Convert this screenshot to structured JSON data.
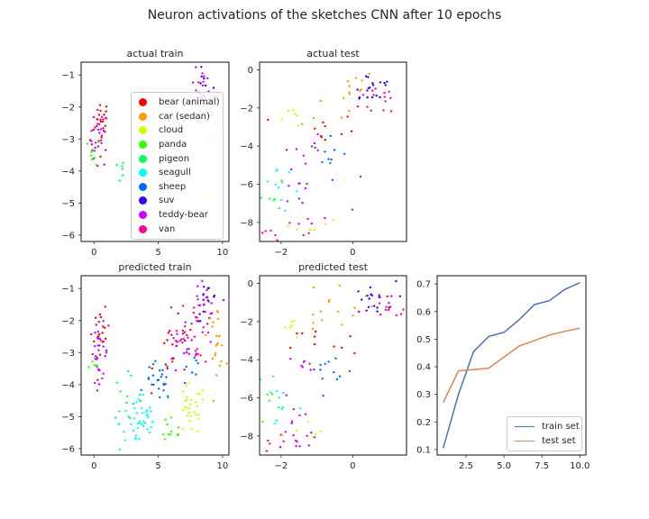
{
  "figure": {
    "suptitle": "Neuron activations of the sketches CNN after 10 epochs"
  },
  "legend_classes": [
    {
      "label": "bear (animal)",
      "color": "#ff0000"
    },
    {
      "label": "car (sedan)",
      "color": "#ff9900"
    },
    {
      "label": "cloud",
      "color": "#ccff00"
    },
    {
      "label": "panda",
      "color": "#33ff00"
    },
    {
      "label": "pigeon",
      "color": "#00ff66"
    },
    {
      "label": "seagull",
      "color": "#00ffff"
    },
    {
      "label": "sheep",
      "color": "#0066ff"
    },
    {
      "label": "suv",
      "color": "#3300ff"
    },
    {
      "label": "teddy-bear",
      "color": "#cc00ff"
    },
    {
      "label": "van",
      "color": "#ff0099"
    }
  ],
  "chart_data": [
    {
      "id": "actual-train",
      "type": "scatter",
      "title": "actual train",
      "xlim": [
        -1,
        10.5
      ],
      "ylim": [
        -6.2,
        -0.6
      ],
      "xticks": [
        0,
        5,
        10
      ],
      "yticks": [
        -1,
        -2,
        -3,
        -4,
        -5,
        -6
      ],
      "grid": false,
      "legend": "right",
      "clusters": [
        {
          "cls": 0,
          "cx": 0.6,
          "cy": -2.5,
          "sx": 0.3,
          "sy": 0.4,
          "n": 20
        },
        {
          "cls": 8,
          "cx": 0.4,
          "cy": -3.0,
          "sx": 0.35,
          "sy": 0.45,
          "n": 28
        },
        {
          "cls": 3,
          "cx": 0.0,
          "cy": -3.4,
          "sx": 0.25,
          "sy": 0.2,
          "n": 8
        },
        {
          "cls": 4,
          "cx": 2.0,
          "cy": -4.0,
          "sx": 0.3,
          "sy": 0.2,
          "n": 6
        },
        {
          "cls": 5,
          "cx": 3.5,
          "cy": -5.0,
          "sx": 0.4,
          "sy": 0.3,
          "n": 6
        },
        {
          "cls": 7,
          "cx": 8.6,
          "cy": -1.5,
          "sx": 0.4,
          "sy": 0.3,
          "n": 12
        },
        {
          "cls": 9,
          "cx": 8.5,
          "cy": -2.0,
          "sx": 0.5,
          "sy": 0.4,
          "n": 16
        },
        {
          "cls": 8,
          "cx": 8.4,
          "cy": -1.3,
          "sx": 0.4,
          "sy": 0.25,
          "n": 10
        },
        {
          "cls": 1,
          "cx": 9.4,
          "cy": -2.4,
          "sx": 0.3,
          "sy": 0.4,
          "n": 8
        },
        {
          "cls": 2,
          "cx": 8.6,
          "cy": -4.8,
          "sx": 0.3,
          "sy": 0.4,
          "n": 6
        },
        {
          "cls": 0,
          "cx": 6.5,
          "cy": -2.5,
          "sx": 0.5,
          "sy": 0.3,
          "n": 4
        }
      ]
    },
    {
      "id": "actual-test",
      "type": "scatter",
      "title": "actual test",
      "xlim": [
        -2.6,
        1.5
      ],
      "ylim": [
        -9,
        0.4
      ],
      "xticks": [
        -2,
        0
      ],
      "yticks": [
        0,
        -2,
        -4,
        -6,
        -8
      ],
      "grid": false,
      "legend": "none",
      "clusters": [
        {
          "cls": 1,
          "cx": -0.3,
          "cy": -0.8,
          "sx": 0.5,
          "sy": 0.4,
          "n": 10
        },
        {
          "cls": 7,
          "cx": 0.5,
          "cy": -0.9,
          "sx": 0.35,
          "sy": 0.5,
          "n": 18
        },
        {
          "cls": 9,
          "cx": 0.9,
          "cy": -1.5,
          "sx": 0.35,
          "sy": 0.5,
          "n": 14
        },
        {
          "cls": 0,
          "cx": -0.8,
          "cy": -3.2,
          "sx": 0.45,
          "sy": 0.5,
          "n": 10
        },
        {
          "cls": 2,
          "cx": -1.7,
          "cy": -2.3,
          "sx": 0.2,
          "sy": 0.3,
          "n": 6
        },
        {
          "cls": 1,
          "cx": -1.0,
          "cy": -2.0,
          "sx": 0.4,
          "sy": 0.4,
          "n": 5
        },
        {
          "cls": 8,
          "cx": -1.3,
          "cy": -4.3,
          "sx": 0.4,
          "sy": 0.4,
          "n": 8
        },
        {
          "cls": 6,
          "cx": -0.6,
          "cy": -4.6,
          "sx": 0.3,
          "sy": 0.5,
          "n": 10
        },
        {
          "cls": 5,
          "cx": -2.1,
          "cy": -6.0,
          "sx": 0.3,
          "sy": 0.9,
          "n": 12
        },
        {
          "cls": 3,
          "cx": -2.3,
          "cy": -6.3,
          "sx": 0.15,
          "sy": 0.6,
          "n": 5
        },
        {
          "cls": 8,
          "cx": -1.4,
          "cy": -7.0,
          "sx": 0.5,
          "sy": 1.2,
          "n": 14
        },
        {
          "cls": 9,
          "cx": -1.8,
          "cy": -8.3,
          "sx": 0.5,
          "sy": 0.3,
          "n": 10
        },
        {
          "cls": 2,
          "cx": -1.2,
          "cy": -8.0,
          "sx": 0.4,
          "sy": 0.4,
          "n": 6
        }
      ]
    },
    {
      "id": "predicted-train",
      "type": "scatter",
      "title": "predicted train",
      "xlim": [
        -1,
        10.5
      ],
      "ylim": [
        -6.2,
        -0.6
      ],
      "xticks": [
        0,
        5,
        10
      ],
      "yticks": [
        -1,
        -2,
        -3,
        -4,
        -5,
        -6
      ],
      "grid": false,
      "legend": "none",
      "clusters": [
        {
          "cls": 0,
          "cx": 0.6,
          "cy": -2.5,
          "sx": 0.3,
          "sy": 0.4,
          "n": 18
        },
        {
          "cls": 8,
          "cx": 0.4,
          "cy": -3.0,
          "sx": 0.35,
          "sy": 0.45,
          "n": 30
        },
        {
          "cls": 3,
          "cx": 0.0,
          "cy": -3.4,
          "sx": 0.25,
          "sy": 0.2,
          "n": 6
        },
        {
          "cls": 4,
          "cx": 2.5,
          "cy": -4.4,
          "sx": 0.6,
          "sy": 0.35,
          "n": 14
        },
        {
          "cls": 5,
          "cx": 3.6,
          "cy": -5.2,
          "sx": 0.8,
          "sy": 0.45,
          "n": 40
        },
        {
          "cls": 3,
          "cx": 6.0,
          "cy": -5.4,
          "sx": 0.5,
          "sy": 0.3,
          "n": 12
        },
        {
          "cls": 2,
          "cx": 7.5,
          "cy": -4.8,
          "sx": 0.6,
          "sy": 0.4,
          "n": 30
        },
        {
          "cls": 6,
          "cx": 5.0,
          "cy": -3.9,
          "sx": 0.5,
          "sy": 0.3,
          "n": 24
        },
        {
          "cls": 0,
          "cx": 6.3,
          "cy": -3.0,
          "sx": 0.8,
          "sy": 0.5,
          "n": 20
        },
        {
          "cls": 8,
          "cx": 7.0,
          "cy": -2.7,
          "sx": 0.6,
          "sy": 0.5,
          "n": 18
        },
        {
          "cls": 9,
          "cx": 8.0,
          "cy": -2.2,
          "sx": 0.7,
          "sy": 0.6,
          "n": 30
        },
        {
          "cls": 7,
          "cx": 8.8,
          "cy": -1.4,
          "sx": 0.4,
          "sy": 0.3,
          "n": 16
        },
        {
          "cls": 1,
          "cx": 9.5,
          "cy": -2.5,
          "sx": 0.35,
          "sy": 0.5,
          "n": 22
        },
        {
          "cls": 8,
          "cx": 8.5,
          "cy": -1.6,
          "sx": 0.5,
          "sy": 0.3,
          "n": 12
        },
        {
          "cls": 6,
          "cx": 7.5,
          "cy": -3.5,
          "sx": 0.5,
          "sy": 0.4,
          "n": 8
        }
      ]
    },
    {
      "id": "predicted-test",
      "type": "scatter",
      "title": "predicted test",
      "xlim": [
        -2.6,
        1.5
      ],
      "ylim": [
        -9,
        0.4
      ],
      "xticks": [
        -2,
        0
      ],
      "yticks": [
        0,
        -2,
        -4,
        -6,
        -8
      ],
      "grid": false,
      "legend": "none",
      "clusters": [
        {
          "cls": 1,
          "cx": -0.3,
          "cy": -0.8,
          "sx": 0.5,
          "sy": 0.4,
          "n": 10
        },
        {
          "cls": 7,
          "cx": 0.5,
          "cy": -0.9,
          "sx": 0.35,
          "sy": 0.5,
          "n": 18
        },
        {
          "cls": 9,
          "cx": 0.9,
          "cy": -1.5,
          "sx": 0.35,
          "sy": 0.5,
          "n": 14
        },
        {
          "cls": 0,
          "cx": -0.8,
          "cy": -3.2,
          "sx": 0.45,
          "sy": 0.5,
          "n": 10
        },
        {
          "cls": 2,
          "cx": -1.7,
          "cy": -2.3,
          "sx": 0.2,
          "sy": 0.3,
          "n": 6
        },
        {
          "cls": 1,
          "cx": -1.0,
          "cy": -2.0,
          "sx": 0.4,
          "sy": 0.4,
          "n": 5
        },
        {
          "cls": 8,
          "cx": -1.3,
          "cy": -4.3,
          "sx": 0.4,
          "sy": 0.4,
          "n": 8
        },
        {
          "cls": 6,
          "cx": -0.6,
          "cy": -4.6,
          "sx": 0.3,
          "sy": 0.5,
          "n": 10
        },
        {
          "cls": 5,
          "cx": -2.1,
          "cy": -6.0,
          "sx": 0.3,
          "sy": 0.9,
          "n": 12
        },
        {
          "cls": 3,
          "cx": -2.3,
          "cy": -6.3,
          "sx": 0.15,
          "sy": 0.6,
          "n": 5
        },
        {
          "cls": 8,
          "cx": -1.4,
          "cy": -7.0,
          "sx": 0.5,
          "sy": 1.2,
          "n": 14
        },
        {
          "cls": 9,
          "cx": -1.8,
          "cy": -8.3,
          "sx": 0.5,
          "sy": 0.3,
          "n": 10
        },
        {
          "cls": 2,
          "cx": -1.2,
          "cy": -8.0,
          "sx": 0.4,
          "sy": 0.4,
          "n": 6
        }
      ]
    },
    {
      "id": "accuracy",
      "type": "line",
      "title": "",
      "xlim": [
        0.6,
        10.4
      ],
      "ylim": [
        0.08,
        0.73
      ],
      "xticks": [
        2.5,
        5.0,
        7.5,
        10.0
      ],
      "yticks": [
        0.1,
        0.2,
        0.3,
        0.4,
        0.5,
        0.6,
        0.7
      ],
      "grid": false,
      "legend": "bottom-right",
      "x": [
        1,
        2,
        3,
        4,
        5,
        6,
        7,
        8,
        9,
        10
      ],
      "series": [
        {
          "name": "train set",
          "color": "#4c72b0",
          "values": [
            0.105,
            0.3,
            0.455,
            0.51,
            0.525,
            0.57,
            0.625,
            0.64,
            0.68,
            0.705
          ]
        },
        {
          "name": "test set",
          "color": "#dd8452",
          "values": [
            0.27,
            0.385,
            0.39,
            0.395,
            0.435,
            0.475,
            0.495,
            0.515,
            0.528,
            0.54
          ]
        }
      ]
    }
  ]
}
